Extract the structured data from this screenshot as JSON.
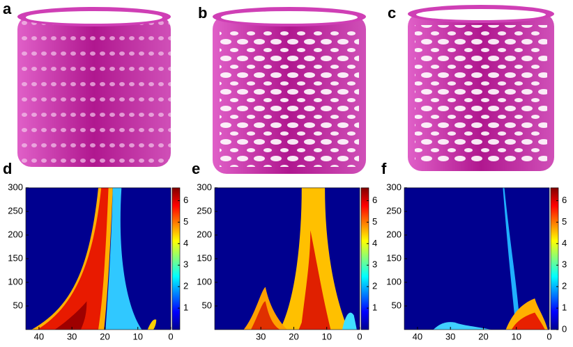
{
  "panels": [
    {
      "label": "a"
    },
    {
      "label": "b"
    },
    {
      "label": "c"
    }
  ],
  "chart_data": [
    {
      "type": "heatmap",
      "label": "d",
      "colormap": "jet",
      "xlim": [
        44,
        0
      ],
      "xticks": [
        40,
        30,
        20,
        10,
        0
      ],
      "ylim": [
        0,
        300
      ],
      "yticks": [
        50,
        100,
        150,
        200,
        250,
        300
      ],
      "clim": [
        0,
        6.6
      ],
      "cticks": [
        1,
        2,
        3,
        4,
        5,
        6
      ]
    },
    {
      "type": "heatmap",
      "label": "e",
      "colormap": "jet",
      "xlim": [
        44,
        0
      ],
      "xticks": [
        30,
        20,
        10,
        0
      ],
      "ylim": [
        0,
        300
      ],
      "yticks": [
        50,
        100,
        150,
        200,
        250,
        300
      ],
      "clim": [
        0,
        6.6
      ],
      "cticks": [
        1,
        2,
        3,
        4,
        5,
        6
      ]
    },
    {
      "type": "heatmap",
      "label": "f",
      "colormap": "jet",
      "xlim": [
        44,
        0
      ],
      "xticks": [
        40,
        30,
        20,
        10,
        0
      ],
      "ylim": [
        0,
        300
      ],
      "yticks": [
        50,
        100,
        150,
        200,
        250,
        300
      ],
      "clim": [
        0,
        6.6
      ],
      "cticks": [
        0,
        1,
        2,
        3,
        4,
        5,
        6
      ]
    }
  ]
}
